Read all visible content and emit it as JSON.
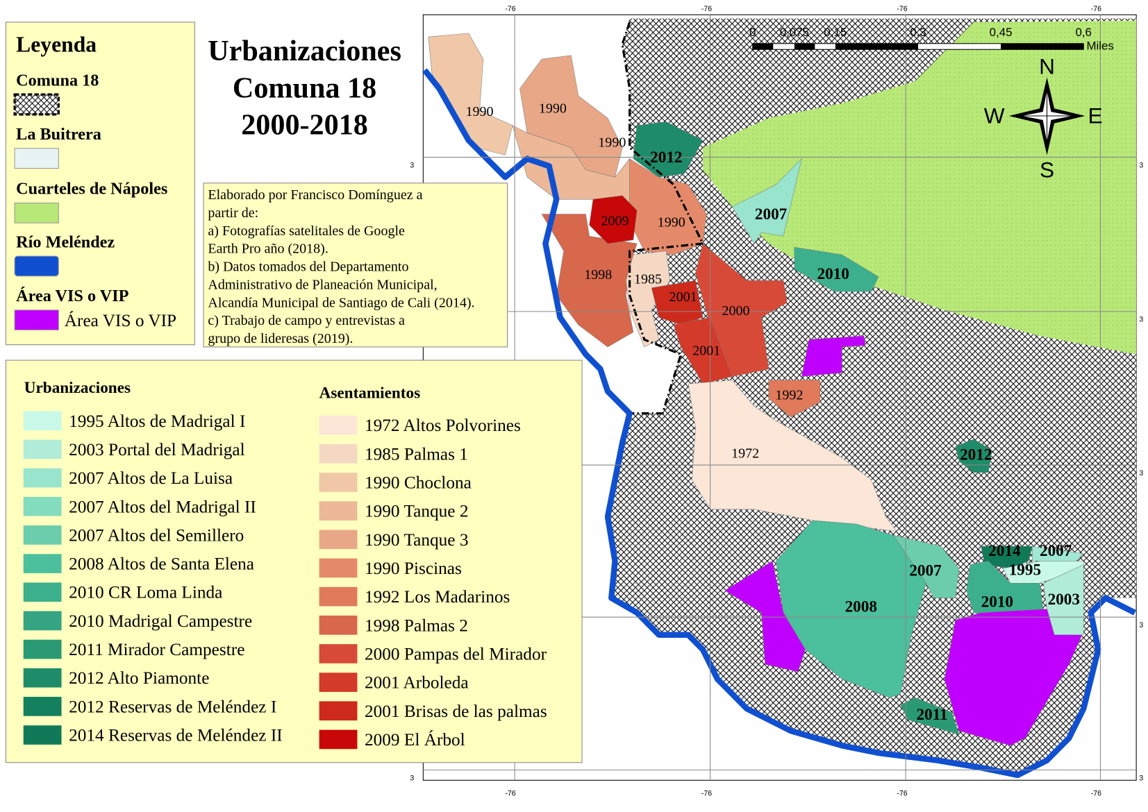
{
  "title": [
    "Urbanizaciones",
    "Comuna 18",
    "2000-2018"
  ],
  "legend": {
    "title": "Leyenda",
    "items": [
      {
        "label": "Comuna 18",
        "swatch": "hatch"
      },
      {
        "label": "La Buitrera",
        "swatch": "#e8f4f4"
      },
      {
        "label": "Cuarteles de Nápoles",
        "swatch": "#b8e878"
      },
      {
        "label": "Río Meléndez",
        "swatch": "#1050d0"
      },
      {
        "label": "Área VIS o VIP",
        "swatch": "#c000ff",
        "swatch_label": "Área VIS o VIP"
      }
    ]
  },
  "note": [
    "Elaborado  por Francisco Domínguez a",
    "partir de:",
    " a) Fotografías satelitales de Google",
    "Earth Pro año (2018).",
    "b) Datos tomados del Departamento",
    "Administrativo de Planeación Municipal,",
    "Alcandía Municipal de Santiago de Cali (2014).",
    "c) Trabajo de campo y entrevistas a",
    "grupo de lideresas (2019)."
  ],
  "urbanizaciones": {
    "title": "Urbanizaciones",
    "items": [
      {
        "label": "1995 Altos de Madrigal I",
        "color": "#c8f8e8"
      },
      {
        "label": "2003 Portal del Madrigal",
        "color": "#b0ecd8"
      },
      {
        "label": "2007 Altos de La Luisa",
        "color": "#98e4cc"
      },
      {
        "label": "2007 Altos del Madrigal II",
        "color": "#84dcbe"
      },
      {
        "label": "2007 Altos del Semillero",
        "color": "#6ccdac"
      },
      {
        "label": "2008  Altos de Santa Elena",
        "color": "#4cbf9c"
      },
      {
        "label": "2010 CR Loma Linda",
        "color": "#3cb08c"
      },
      {
        "label": "2010 Madrigal Campestre",
        "color": "#34a482"
      },
      {
        "label": "2011 Mirador Campestre",
        "color": "#2a9a74"
      },
      {
        "label": "2012 Alto Piamonte",
        "color": "#1e8c68"
      },
      {
        "label": "2012 Reservas de Meléndez I",
        "color": "#14805e"
      },
      {
        "label": "2014 Reservas de Meléndez II",
        "color": "#107a58"
      }
    ]
  },
  "asentamientos": {
    "title": "Asentamientos",
    "items": [
      {
        "label": "1972 Altos Polvorines",
        "color": "#fbe6d8"
      },
      {
        "label": "1985 Palmas 1",
        "color": "#f5d8c4"
      },
      {
        "label": "1990 Choclona",
        "color": "#f0c8a8"
      },
      {
        "label": "1990 Tanque 2",
        "color": "#ecb898"
      },
      {
        "label": "1990 Tanque 3",
        "color": "#e8a888"
      },
      {
        "label": "1990 Piscinas",
        "color": "#e48a6a"
      },
      {
        "label": "1992 Los Madarinos",
        "color": "#e07a5a"
      },
      {
        "label": "1998 Palmas 2",
        "color": "#d8684c"
      },
      {
        "label": "2000 Pampas del Mirador",
        "color": "#d84a38"
      },
      {
        "label": "2001 Arboleda",
        "color": "#d43a2a"
      },
      {
        "label": "2001 Brisas de las palmas",
        "color": "#cd2a1c"
      },
      {
        "label": "2009 El Árbol",
        "color": "#c80808"
      }
    ]
  },
  "map_labels": [
    "1990",
    "1990",
    "1990",
    "2012",
    "2009",
    "1990",
    "1998",
    "1985",
    "2001",
    "2000",
    "2001",
    "1992",
    "1972",
    "2007",
    "2010",
    "2012",
    "2014",
    "2007",
    "1995",
    "2007",
    "2008",
    "2010",
    "2003",
    "2011"
  ],
  "scale": {
    "labels": [
      "0",
      "0,075",
      "0,15",
      "0,3",
      "0,45",
      "0,6"
    ],
    "unit": "Miles"
  },
  "compass": {
    "n": "N",
    "w": "W",
    "e": "E",
    "s": "S"
  },
  "coords": {
    "top": [
      "-76",
      "-76",
      "-76",
      "-76"
    ],
    "bottom": [
      "-76",
      "-76",
      "-76",
      "-76"
    ],
    "left": [
      "3",
      "3",
      "3",
      "3",
      "3"
    ],
    "right": [
      "3",
      "3",
      "3",
      "3",
      "3"
    ]
  }
}
